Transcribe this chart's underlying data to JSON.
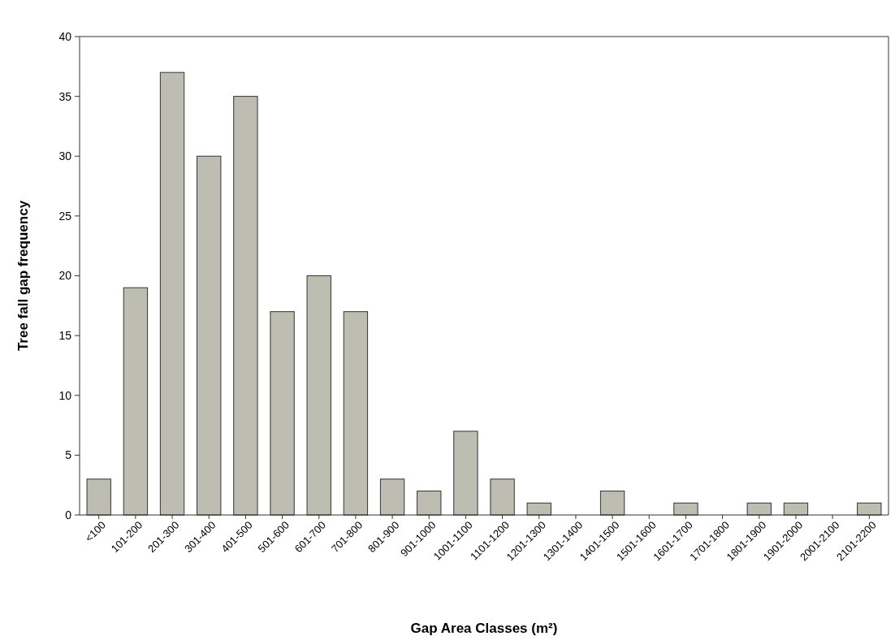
{
  "chart_data": {
    "type": "bar",
    "xlabel": "Gap Area Classes (m²)",
    "ylabel": "Tree fall gap frequency",
    "categories": [
      "<100",
      "101-200",
      "201-300",
      "301-400",
      "401-500",
      "501-600",
      "601-700",
      "701-800",
      "801-900",
      "901-1000",
      "1001-1100",
      "1101-1200",
      "1201-1300",
      "1301-1400",
      "1401-1500",
      "1501-1600",
      "1601-1700",
      "1701-1800",
      "1801-1900",
      "1901-2000",
      "2001-2100",
      "2101-2200"
    ],
    "values": [
      3,
      19,
      37,
      30,
      35,
      17,
      20,
      17,
      3,
      2,
      7,
      3,
      1,
      0,
      2,
      0,
      1,
      0,
      1,
      1,
      0,
      1
    ],
    "color": "#bdbdb1",
    "ylim": [
      0,
      40
    ],
    "yticks": [
      0,
      5,
      10,
      15,
      20,
      25,
      30,
      35,
      40
    ],
    "grid": false
  }
}
